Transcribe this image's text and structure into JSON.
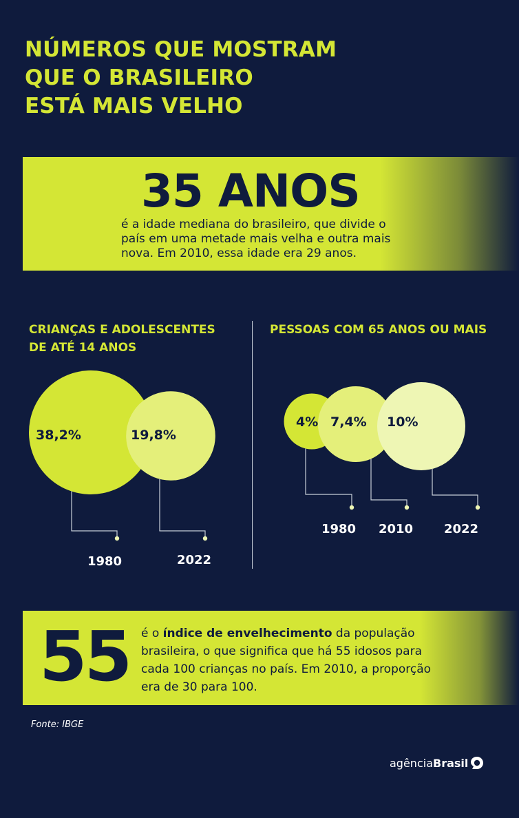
{
  "title": {
    "line1": "NÚMEROS QUE MOSTRAM",
    "line2": "QUE O BRASILEIRO",
    "line3": "ESTÁ MAIS VELHO"
  },
  "median_age": {
    "number": "35 ANOS",
    "text_line1": "é a idade mediana do brasileiro, que divide o",
    "text_line2": "país em uma metade mais velha e outra mais",
    "text_line3": "nova. Em 2010, essa idade era 29 anos."
  },
  "children_section": {
    "heading_line1": "CRIANÇAS E ADOLESCENTES",
    "heading_line2": "DE ATÉ 14 ANOS",
    "items": [
      {
        "year": "1980",
        "label": "38,2%",
        "value": 38.2,
        "color": "#d4e635"
      },
      {
        "year": "2022",
        "label": "19,8%",
        "value": 19.8,
        "color": "#e4ef7a"
      }
    ]
  },
  "elderly_section": {
    "heading": "PESSOAS COM 65 ANOS OU MAIS",
    "items": [
      {
        "year": "1980",
        "label": "4%",
        "value": 4,
        "color": "#d4e635"
      },
      {
        "year": "2010",
        "label": "7,4%",
        "value": 7.4,
        "color": "#e4ef7a"
      },
      {
        "year": "2022",
        "label": "10%",
        "value": 10,
        "color": "#eef6b4"
      }
    ]
  },
  "aging_index": {
    "number": "55",
    "pre": "é o ",
    "bold": "índice de envelhecimento",
    "post": " da população",
    "line2": "brasileira, o que significa que há 55 idosos para",
    "line3": "cada 100 crianças no país. Em 2010, a proporção",
    "line4": "era de 30 para 100."
  },
  "source": "Fonte: IBGE",
  "logo": {
    "regular": "agência",
    "bold": "Brasil"
  },
  "colors": {
    "background": "#0f1b3d",
    "accent": "#d4e635"
  }
}
